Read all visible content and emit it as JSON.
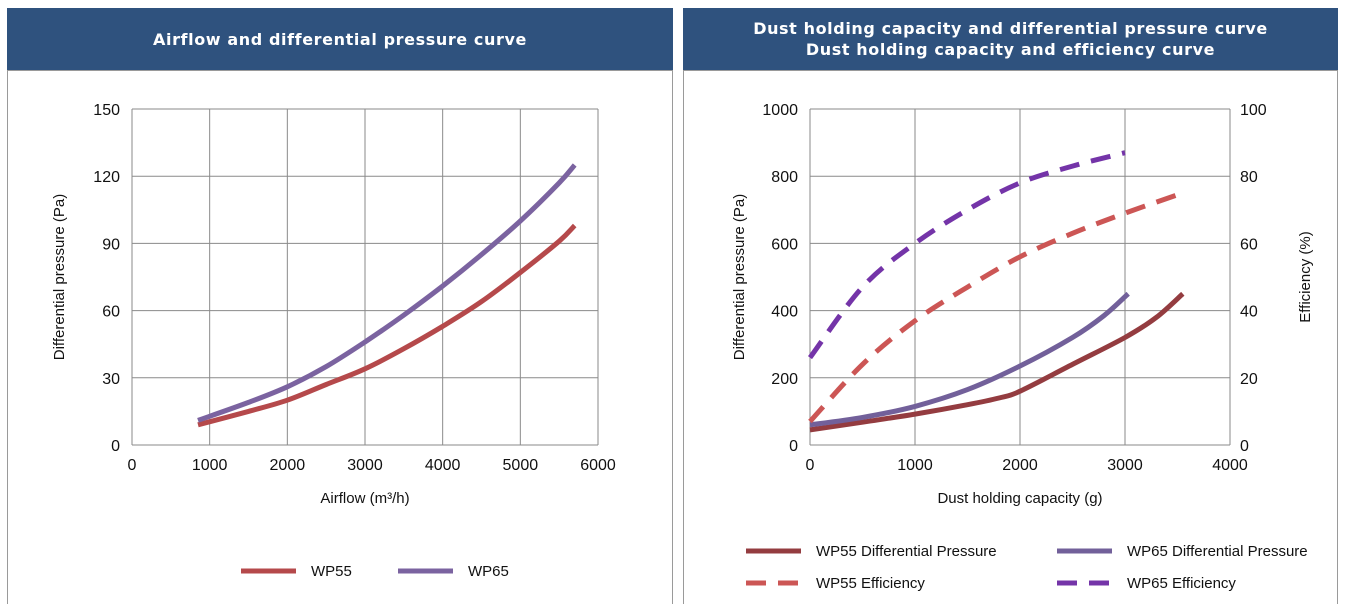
{
  "panels": {
    "left": {
      "title_lines": [
        "Airflow and differential pressure curve"
      ]
    },
    "right": {
      "title_lines": [
        "Dust holding capacity and differential pressure curve",
        "Dust holding capacity and efficiency curve"
      ]
    }
  },
  "colors": {
    "header_bg": "#2f527e",
    "wp55": "#b5494b",
    "wp65": "#7b63a0",
    "wp55_dp": "#943c40",
    "wp65_dp": "#72609a",
    "wp55_eff": "#cc5655",
    "wp65_eff": "#7434a8",
    "grid": "#8a8a8a"
  },
  "chart_data": [
    {
      "type": "line",
      "xlabel": "Airflow (m³/h)",
      "ylabel": "Differential pressure (Pa)",
      "xlim": [
        0,
        6000
      ],
      "ylim": [
        0,
        150
      ],
      "xticks": [
        0,
        1000,
        2000,
        3000,
        4000,
        5000,
        6000
      ],
      "yticks": [
        0,
        30,
        60,
        90,
        120,
        150
      ],
      "grid": true,
      "legend": "bottom",
      "series": [
        {
          "name": "WP55",
          "color": "#b5494b",
          "dash": false,
          "points": [
            [
              850,
              9
            ],
            [
              1500,
              15
            ],
            [
              2000,
              20
            ],
            [
              2500,
              27
            ],
            [
              3000,
              34
            ],
            [
              3500,
              43
            ],
            [
              4000,
              53
            ],
            [
              4500,
              64
            ],
            [
              5000,
              77
            ],
            [
              5500,
              91
            ],
            [
              5700,
              98
            ]
          ]
        },
        {
          "name": "WP65",
          "color": "#7b63a0",
          "dash": false,
          "points": [
            [
              850,
              11
            ],
            [
              1500,
              19
            ],
            [
              2000,
              26
            ],
            [
              2500,
              35
            ],
            [
              3000,
              46
            ],
            [
              3500,
              58
            ],
            [
              4000,
              71
            ],
            [
              4500,
              85
            ],
            [
              5000,
              100
            ],
            [
              5500,
              117
            ],
            [
              5700,
              125
            ]
          ]
        }
      ]
    },
    {
      "type": "line",
      "xlabel": "Dust holding capacity (g)",
      "ylabel": "Differential pressure (Pa)",
      "y2label": "Efficiency (%)",
      "xlim": [
        0,
        4000
      ],
      "ylim": [
        0,
        1000
      ],
      "y2lim": [
        0,
        100
      ],
      "xticks": [
        0,
        1000,
        2000,
        3000,
        4000
      ],
      "yticks": [
        0,
        200,
        400,
        600,
        800,
        1000
      ],
      "y2ticks": [
        0,
        20,
        40,
        60,
        80,
        100
      ],
      "grid": true,
      "legend": "bottom",
      "series": [
        {
          "name": "WP55 Differential Pressure",
          "axis": "left",
          "color": "#943c40",
          "dash": false,
          "points": [
            [
              0,
              45
            ],
            [
              500,
              68
            ],
            [
              1000,
              92
            ],
            [
              1500,
              120
            ],
            [
              1800,
              140
            ],
            [
              2000,
              160
            ],
            [
              2500,
              240
            ],
            [
              3000,
              320
            ],
            [
              3300,
              380
            ],
            [
              3550,
              450
            ]
          ]
        },
        {
          "name": "WP65 Differential Pressure",
          "axis": "left",
          "color": "#72609a",
          "dash": false,
          "points": [
            [
              0,
              60
            ],
            [
              500,
              82
            ],
            [
              1000,
              115
            ],
            [
              1500,
              165
            ],
            [
              2000,
              235
            ],
            [
              2500,
              320
            ],
            [
              2800,
              385
            ],
            [
              3030,
              450
            ]
          ]
        },
        {
          "name": "WP55 Efficiency",
          "axis": "right",
          "color": "#cc5655",
          "dash": true,
          "points": [
            [
              0,
              7
            ],
            [
              500,
              24
            ],
            [
              1000,
              37
            ],
            [
              1500,
              47
            ],
            [
              2000,
              56
            ],
            [
              2500,
              63
            ],
            [
              3000,
              69
            ],
            [
              3550,
              75
            ]
          ]
        },
        {
          "name": "WP65 Efficiency",
          "axis": "right",
          "color": "#7434a8",
          "dash": true,
          "points": [
            [
              0,
              26
            ],
            [
              500,
              47
            ],
            [
              1000,
              60
            ],
            [
              1500,
              70
            ],
            [
              2000,
              78
            ],
            [
              2500,
              83
            ],
            [
              3000,
              87
            ]
          ]
        }
      ]
    }
  ]
}
